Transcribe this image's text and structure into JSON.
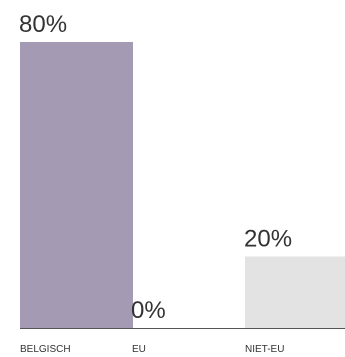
{
  "chart_data": {
    "type": "bar",
    "categories": [
      "BELGISCH",
      "EU",
      "NIET-EU"
    ],
    "values": [
      80,
      0,
      20
    ],
    "value_labels": [
      "80%",
      "0%",
      "20%"
    ],
    "bar_colors": [
      "#a49ab4",
      "#ffffff",
      "#e3e3e3"
    ],
    "baseline_color": "#555555",
    "label_color": "#333333",
    "ylim": [
      0,
      100
    ],
    "grid": false,
    "title": "",
    "xlabel": "",
    "ylabel": ""
  }
}
